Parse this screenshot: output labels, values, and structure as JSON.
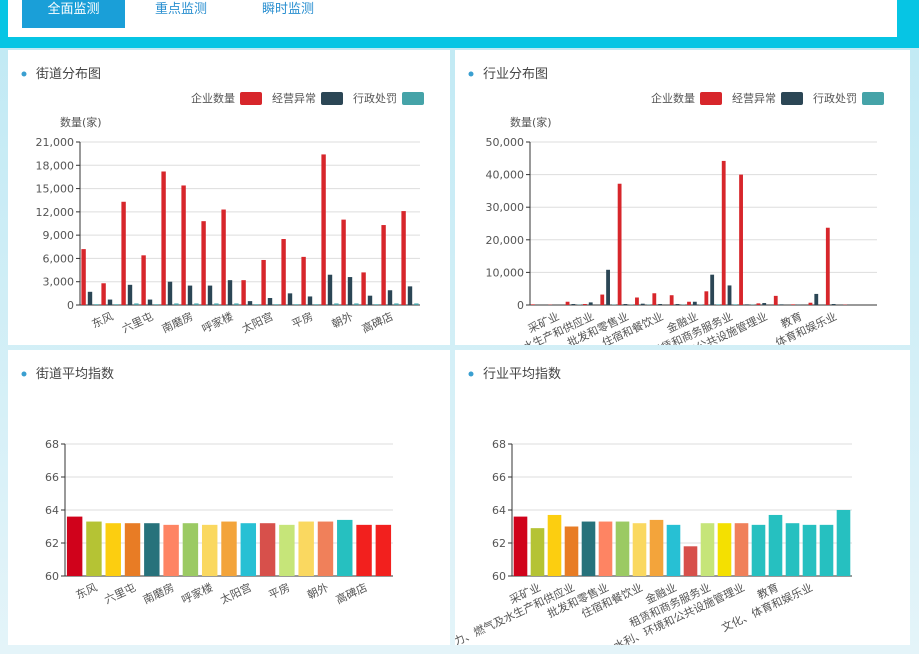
{
  "tabs": [
    "全面监测",
    "重点监测",
    "瞬时监测"
  ],
  "chart_data": [
    {
      "type": "grouped-bar",
      "title": "街道分布图",
      "y_axis_label": "数量(家)",
      "legend": "top-right",
      "categories": [
        null,
        "东风",
        null,
        "六里屯",
        null,
        "南磨房",
        null,
        "呼家楼",
        null,
        "太阳宫",
        null,
        "平房",
        null,
        "朝外",
        null,
        "高碑店",
        null
      ],
      "series": [
        {
          "name": "企业数量",
          "color": "#d7262b",
          "values": [
            7200,
            2800,
            13300,
            6400,
            17200,
            15400,
            10800,
            12300,
            3200,
            5800,
            8500,
            6200,
            19400,
            11000,
            4200,
            10300,
            12100
          ]
        },
        {
          "name": "经营异常",
          "color": "#2b4655",
          "values": [
            1700,
            700,
            2600,
            700,
            3000,
            2500,
            2500,
            3200,
            500,
            900,
            1500,
            1100,
            3900,
            3600,
            1200,
            1900,
            2400
          ]
        },
        {
          "name": "行政处罚",
          "color": "#45a3a8",
          "values": [
            100,
            100,
            200,
            100,
            200,
            200,
            200,
            200,
            100,
            100,
            100,
            100,
            200,
            200,
            100,
            200,
            200
          ]
        }
      ],
      "ylim": [
        0,
        21000
      ],
      "yticks": [
        0,
        {
          "value": 3000,
          "label": "3,000"
        },
        {
          "value": 6000,
          "label": "6,000"
        },
        {
          "value": 9000,
          "label": "9,000"
        },
        {
          "value": 12000,
          "label": "12,000"
        },
        {
          "value": 15000,
          "label": "15,000"
        },
        {
          "value": 18000,
          "label": "18,000"
        },
        {
          "value": 21000,
          "label": "21,000"
        }
      ],
      "grid": true
    },
    {
      "type": "grouped-bar",
      "title": "行业分布图",
      "y_axis_label": "数量(家)",
      "legend": "top-right",
      "categories": [
        null,
        "采矿业",
        null,
        "电力、热力、燃气及水生产和供应业",
        null,
        "批发和零售业",
        null,
        "住宿和餐饮业",
        null,
        "金融业",
        null,
        "租赁和商务服务业",
        null,
        "水利、环境和公共设施管理业",
        null,
        "教育",
        null,
        "文化、体育和娱乐业",
        null,
        null
      ],
      "series": [
        {
          "name": "企业数量",
          "color": "#d7262b",
          "values": [
            200,
            100,
            1000,
            300,
            3200,
            37200,
            2300,
            3600,
            3000,
            1000,
            4200,
            44200,
            40000,
            500,
            2800,
            200,
            700,
            23700,
            100,
            0
          ]
        },
        {
          "name": "经营异常",
          "color": "#2b4655",
          "values": [
            0,
            0,
            300,
            800,
            10800,
            300,
            400,
            300,
            300,
            1000,
            9300,
            6000,
            200,
            600,
            200,
            100,
            3400,
            300,
            0,
            0
          ]
        },
        {
          "name": "行政处罚",
          "color": "#45a3a8",
          "values": [
            0,
            0,
            100,
            0,
            100,
            100,
            100,
            0,
            100,
            100,
            200,
            200,
            100,
            0,
            0,
            0,
            0,
            0,
            0,
            0
          ]
        }
      ],
      "ylim": [
        0,
        50000
      ],
      "yticks": [
        0,
        {
          "value": 10000,
          "label": "10,000"
        },
        {
          "value": 20000,
          "label": "20,000"
        },
        {
          "value": 30000,
          "label": "30,000"
        },
        {
          "value": 40000,
          "label": "40,000"
        },
        {
          "value": 50000,
          "label": "50,000"
        }
      ],
      "grid": true
    },
    {
      "type": "bar",
      "title": "街道平均指数",
      "categories": [
        null,
        "东风",
        null,
        "六里屯",
        null,
        "南磨房",
        null,
        "呼家楼",
        null,
        "太阳宫",
        null,
        "平房",
        null,
        "朝外",
        null,
        "高碑店",
        null
      ],
      "values": [
        63.6,
        63.3,
        63.2,
        63.2,
        63.2,
        63.1,
        63.2,
        63.1,
        63.3,
        63.2,
        63.2,
        63.1,
        63.3,
        63.3,
        63.4,
        63.1,
        63.1
      ],
      "colors": [
        "#d0021b",
        "#b5c334",
        "#fcce10",
        "#e87c25",
        "#27727b",
        "#fe8463",
        "#9bca63",
        "#fad860",
        "#f3a43b",
        "#27c0d4",
        "#d7504b",
        "#c6e579",
        "#fad860",
        "#f0805a",
        "#26c0c0",
        "#f2201e",
        "#f2201e"
      ],
      "ylim": [
        60,
        68
      ],
      "yticks": [
        60,
        62,
        64,
        66,
        68
      ],
      "grid": true
    },
    {
      "type": "bar",
      "title": "行业平均指数",
      "categories": [
        null,
        "采矿业",
        null,
        "电力、热力、燃气及水生产和供应业",
        null,
        "批发和零售业",
        null,
        "住宿和餐饮业",
        null,
        "金融业",
        null,
        "租赁和商务服务业",
        null,
        "水利、环境和公共设施管理业",
        null,
        "教育",
        null,
        "文化、体育和娱乐业",
        null,
        null
      ],
      "values": [
        63.6,
        62.9,
        63.7,
        63.0,
        63.3,
        63.3,
        63.3,
        63.2,
        63.4,
        63.1,
        61.8,
        63.2,
        63.2,
        63.2,
        63.1,
        63.7,
        63.2,
        63.1,
        63.1,
        64.0
      ],
      "colors": [
        "#d0021b",
        "#b5c334",
        "#fcce10",
        "#e87c25",
        "#27727b",
        "#fe8463",
        "#9bca63",
        "#fad860",
        "#f3a43b",
        "#27c0d4",
        "#d7504b",
        "#c6e579",
        "#f4e001",
        "#f0805a",
        "#26c0c0",
        "#26c0c0",
        "#26c0c0",
        "#26c0c0",
        "#26c0c0",
        "#26c0c0"
      ],
      "ylim": [
        60,
        68
      ],
      "yticks": [
        60,
        62,
        64,
        66,
        68
      ],
      "grid": true
    }
  ]
}
